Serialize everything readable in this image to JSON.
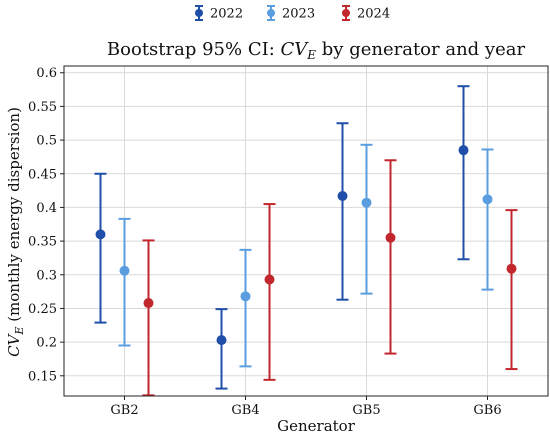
{
  "chart_data": {
    "type": "errorbar",
    "title_prefix": "Bootstrap 95% CI: ",
    "title_math": "CV",
    "title_sub": "E",
    "title_suffix": " by generator and year",
    "xlabel": "Generator",
    "ylabel_math": "CV",
    "ylabel_sub": "E",
    "ylabel_suffix": " (monthly energy dispersion)",
    "categories": [
      "GB2",
      "GB4",
      "GB5",
      "GB6"
    ],
    "ylim": [
      0.12,
      0.61
    ],
    "yticks": [
      0.15,
      0.2,
      0.25,
      0.3,
      0.35,
      0.4,
      0.45,
      0.5,
      0.55,
      0.6
    ],
    "ytick_labels": [
      "0.15",
      "0.2",
      "0.25",
      "0.3",
      "0.35",
      "0.4",
      "0.45",
      "0.5",
      "0.55",
      "0.6"
    ],
    "grid": true,
    "legend_position": "top-center",
    "series": [
      {
        "name": "2022",
        "color": "#1f4fa8",
        "values": [
          0.36,
          0.203,
          0.417,
          0.485
        ],
        "lower": [
          0.229,
          0.131,
          0.263,
          0.323
        ],
        "upper": [
          0.45,
          0.249,
          0.525,
          0.58
        ]
      },
      {
        "name": "2023",
        "color": "#5a9ee0",
        "values": [
          0.306,
          0.268,
          0.407,
          0.412
        ],
        "lower": [
          0.195,
          0.164,
          0.272,
          0.278
        ],
        "upper": [
          0.383,
          0.337,
          0.493,
          0.486
        ]
      },
      {
        "name": "2024",
        "color": "#c1272d",
        "values": [
          0.258,
          0.293,
          0.355,
          0.309
        ],
        "lower": [
          0.121,
          0.144,
          0.183,
          0.16
        ],
        "upper": [
          0.351,
          0.405,
          0.47,
          0.396
        ]
      }
    ]
  }
}
